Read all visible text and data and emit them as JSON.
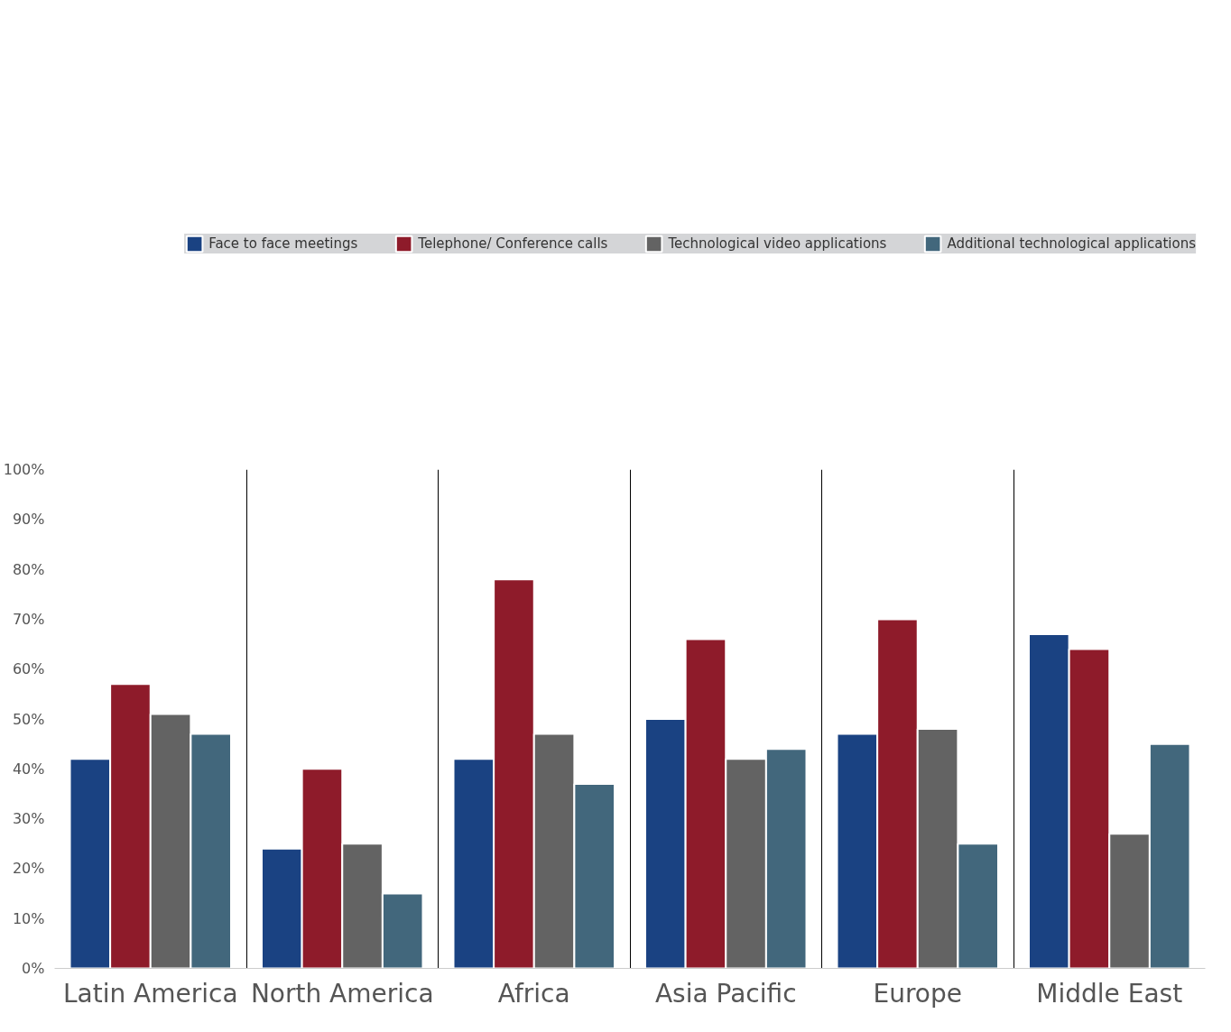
{
  "chart_data": {
    "type": "bar",
    "categories": [
      "Latin America",
      "North America",
      "Africa",
      "Asia Pacific",
      "Europe",
      "Middle East"
    ],
    "series": [
      {
        "name": "Face to face meetings",
        "color": "#1a4282",
        "values": [
          42,
          24,
          42,
          50,
          47,
          67
        ]
      },
      {
        "name": "Telephone/ Conference calls",
        "color": "#8e1b2a",
        "values": [
          57,
          40,
          78,
          66,
          70,
          64
        ]
      },
      {
        "name": "Technological video applications",
        "color": "#636363",
        "values": [
          51,
          25,
          47,
          42,
          48,
          27
        ]
      },
      {
        "name": "Additional technological applications",
        "color": "#42677c",
        "values": [
          47,
          15,
          37,
          44,
          25,
          45
        ]
      }
    ],
    "ylim": [
      0,
      100
    ],
    "yticks": [
      {
        "value": 0,
        "label": "0%"
      },
      {
        "value": 10,
        "label": "10%"
      },
      {
        "value": 20,
        "label": "20%"
      },
      {
        "value": 30,
        "label": "30%"
      },
      {
        "value": 40,
        "label": "40%"
      },
      {
        "value": 50,
        "label": "50%"
      },
      {
        "value": 60,
        "label": "60%"
      },
      {
        "value": 70,
        "label": "70%"
      },
      {
        "value": 80,
        "label": "80%"
      },
      {
        "value": 90,
        "label": "90%"
      },
      {
        "value": 100,
        "label": "100%"
      }
    ],
    "grid": "x",
    "legend": "top"
  }
}
